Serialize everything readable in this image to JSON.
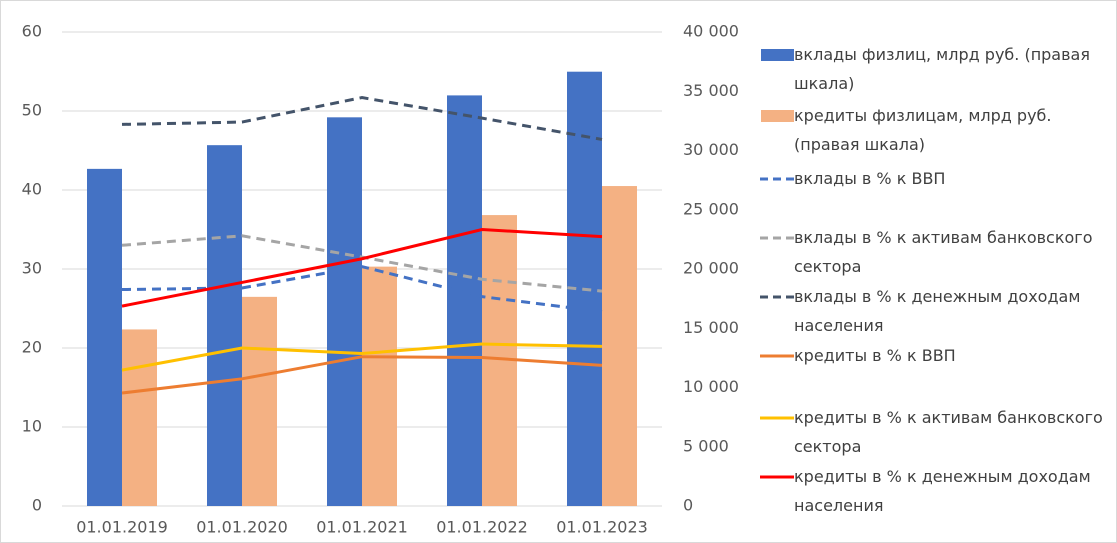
{
  "chart_data": {
    "type": "combo",
    "categories": [
      "01.01.2019",
      "01.01.2020",
      "01.01.2021",
      "01.01.2022",
      "01.01.2023"
    ],
    "ylim": [
      0,
      60
    ],
    "yticks": [
      0,
      10,
      20,
      30,
      40,
      50,
      60
    ],
    "y2lim": [
      0,
      40000
    ],
    "y2ticks": [
      0,
      {
        "value": 5000,
        "label": "5 000"
      },
      {
        "value": 10000,
        "label": "10 000"
      },
      {
        "value": 15000,
        "label": "15 000"
      },
      {
        "value": 20000,
        "label": "20 000"
      },
      {
        "value": 25000,
        "label": "25 000"
      },
      {
        "value": 30000,
        "label": "30 000"
      },
      {
        "value": 35000,
        "label": "35 000"
      },
      {
        "value": 40000,
        "label": "40 000"
      }
    ],
    "grid": true,
    "legend": "right",
    "series": [
      {
        "name": "вклады физлиц, млрд руб. (правая шкала)",
        "type": "bar",
        "axis": "y2",
        "color": "#4472c4",
        "values": [
          28450,
          30450,
          32800,
          34650,
          36650
        ]
      },
      {
        "name": "кредиты физлицам, млрд руб. (правая шкала)",
        "type": "bar",
        "axis": "y2",
        "color": "#f4b183",
        "values": [
          14900,
          17650,
          20200,
          24550,
          27000
        ]
      },
      {
        "name": "вклады в % к ВВП",
        "type": "line",
        "dashed": true,
        "color": "#4472c4",
        "values": [
          27.4,
          27.6,
          30.3,
          26.5,
          24.6
        ]
      },
      {
        "name": "вклады в % к активам банковского сектора",
        "type": "line",
        "dashed": true,
        "color": "#a5a5a5",
        "values": [
          33,
          34.2,
          31.5,
          28.7,
          27.2
        ]
      },
      {
        "name": "вклады в % к денежным доходам населения",
        "type": "line",
        "dashed": true,
        "color": "#44546a",
        "values": [
          48.3,
          48.6,
          51.7,
          49.1,
          46.4
        ]
      },
      {
        "name": "кредиты в % к ВВП",
        "type": "line",
        "color": "#ed7d31",
        "values": [
          14.3,
          16.1,
          18.9,
          18.8,
          17.8
        ]
      },
      {
        "name": "кредиты в % к активам банковского сектора",
        "type": "line",
        "color": "#ffc000",
        "values": [
          17.2,
          20,
          19.3,
          20.5,
          20.2
        ]
      },
      {
        "name": "кредиты в % к денежным доходам населения",
        "type": "line",
        "color": "#ff0000",
        "values": [
          25.3,
          28.3,
          31.3,
          35,
          34.1
        ]
      }
    ]
  }
}
